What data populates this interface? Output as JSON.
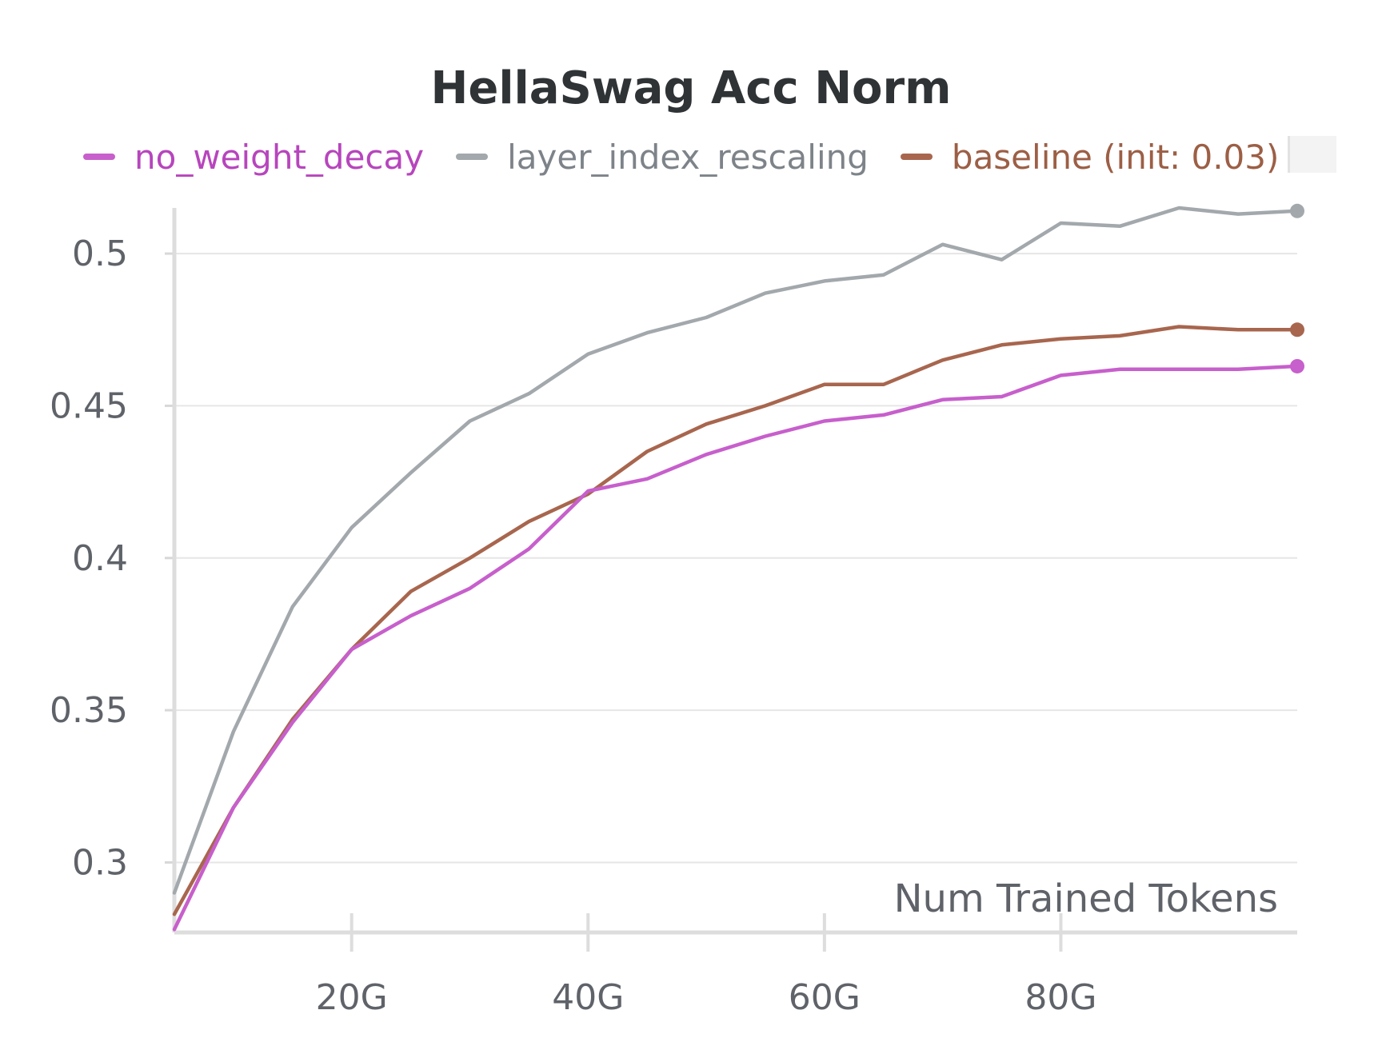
{
  "chart_data": {
    "type": "line",
    "title": "HellaSwag Acc Norm",
    "xlabel": "Num Trained Tokens",
    "ylabel": "",
    "xlim": [
      5,
      100
    ],
    "ylim": [
      0.277,
      0.515
    ],
    "x_ticks": [
      20,
      40,
      60,
      80
    ],
    "x_tick_labels": [
      "20G",
      "40G",
      "60G",
      "80G"
    ],
    "y_ticks": [
      0.3,
      0.35,
      0.4,
      0.45,
      0.5
    ],
    "y_tick_labels": [
      "0.3",
      "0.35",
      "0.4",
      "0.45",
      "0.5"
    ],
    "grid": true,
    "legend_position": "top",
    "x": [
      5,
      10,
      15,
      20,
      25,
      30,
      35,
      40,
      45,
      50,
      55,
      60,
      65,
      70,
      75,
      80,
      85,
      90,
      95,
      100
    ],
    "series": [
      {
        "name": "no_weight_decay",
        "color": "#c75fcc",
        "values": [
          0.278,
          0.318,
          0.346,
          0.37,
          0.381,
          0.39,
          0.403,
          0.422,
          0.426,
          0.434,
          0.44,
          0.445,
          0.447,
          0.452,
          0.453,
          0.46,
          0.462,
          0.462,
          0.462,
          0.463
        ]
      },
      {
        "name": "layer_index_rescaling",
        "color": "#a2a8ac",
        "values": [
          0.29,
          0.343,
          0.384,
          0.41,
          0.428,
          0.445,
          0.454,
          0.467,
          0.474,
          0.479,
          0.487,
          0.491,
          0.493,
          0.503,
          0.498,
          0.51,
          0.509,
          0.515,
          0.513,
          0.514
        ]
      },
      {
        "name": "baseline (init: 0.03)",
        "color": "#a8664e",
        "values": [
          0.283,
          0.318,
          0.347,
          0.37,
          0.389,
          0.4,
          0.412,
          0.421,
          0.435,
          0.444,
          0.45,
          0.457,
          0.457,
          0.465,
          0.47,
          0.472,
          0.473,
          0.476,
          0.475,
          0.475
        ]
      }
    ]
  }
}
